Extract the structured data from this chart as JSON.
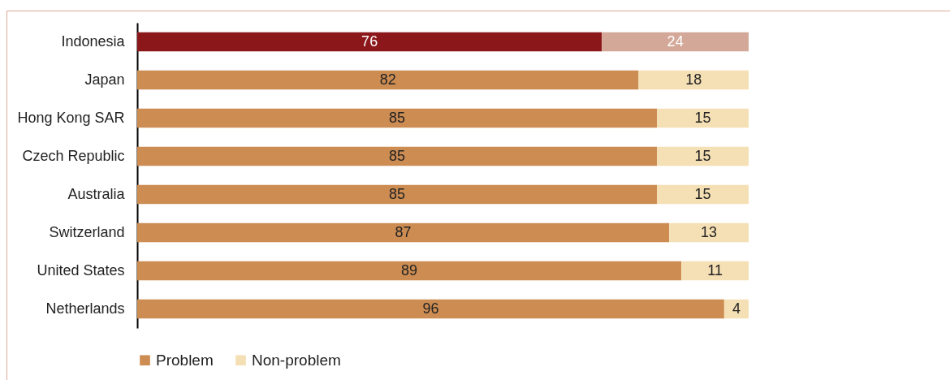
{
  "chart_data": {
    "type": "bar",
    "orientation": "horizontal",
    "stacked": true,
    "data_labels": true,
    "legend": "bottom",
    "tick_labels": "y",
    "xlim": [
      0,
      100
    ],
    "categories": [
      "Indonesia",
      "Japan",
      "Hong Kong SAR",
      "Czech Republic",
      "Australia",
      "Switzerland",
      "United States",
      "Netherlands"
    ],
    "series": [
      {
        "name": "Problem",
        "color": "#cc8c52",
        "colors": [
          "#8b171b",
          "#cc8c52",
          "#cc8c52",
          "#cc8c52",
          "#cc8c52",
          "#cc8c52",
          "#cc8c52",
          "#cc8c52"
        ],
        "values": [
          76,
          82,
          85,
          85,
          85,
          87,
          89,
          96
        ]
      },
      {
        "name": "Non-problem",
        "color": "#f5dfb4",
        "colors": [
          "#d4a898",
          "#f5dfb4",
          "#f5dfb4",
          "#f5dfb4",
          "#f5dfb4",
          "#f5dfb4",
          "#f5dfb4",
          "#f5dfb4"
        ],
        "values": [
          24,
          18,
          15,
          15,
          15,
          13,
          11,
          4
        ]
      }
    ]
  }
}
